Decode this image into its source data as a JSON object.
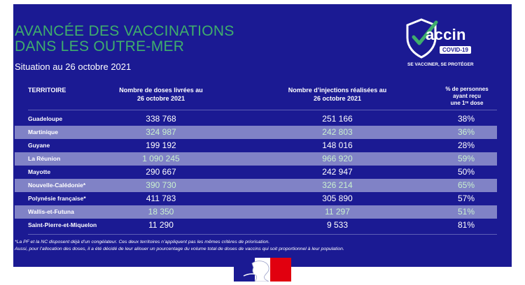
{
  "header": {
    "title_line1": "AVANCÉE DES VACCINATIONS",
    "title_line2": "DANS LES OUTRE-MER",
    "subtitle": "Situation au 26 octobre 2021"
  },
  "logo": {
    "word": "accin",
    "badge": "COVID-19",
    "tagline": "SE VACCINER, SE PROTÉGER",
    "icon": "shield-check-icon"
  },
  "table": {
    "headers": {
      "territory": "TERRITOIRE",
      "doses_1": "Nombre de doses livrées au",
      "doses_2": "26 octobre 2021",
      "injections_1": "Nombre d’injections réalisées au",
      "injections_2": "26 octobre 2021",
      "percent_1": "% de personnes",
      "percent_2": "ayant reçu",
      "percent_3": "une 1ʳᵉ dose"
    },
    "rows": [
      {
        "territory": "Guadeloupe",
        "doses": "338 768",
        "injections": "251 166",
        "percent": "38%"
      },
      {
        "territory": "Martinique",
        "doses": "324 987",
        "injections": "242 803",
        "percent": "36%"
      },
      {
        "territory": "Guyane",
        "doses": "199 192",
        "injections": "148 016",
        "percent": "28%"
      },
      {
        "territory": "La Réunion",
        "doses": "1 090 245",
        "injections": "966 920",
        "percent": "59%"
      },
      {
        "territory": "Mayotte",
        "doses": "290 667",
        "injections": "242 947",
        "percent": "50%"
      },
      {
        "territory": "Nouvelle-Calédonie*",
        "doses": "390 730",
        "injections": "326 214",
        "percent": "65%"
      },
      {
        "territory": "Polynésie française*",
        "doses": "411 783",
        "injections": "305 890",
        "percent": "57%"
      },
      {
        "territory": "Wallis-et-Futuna",
        "doses": "18 350",
        "injections": "11 297",
        "percent": "51%"
      },
      {
        "territory": "Saint-Pierre-et-Miquelon",
        "doses": "11 290",
        "injections": "9 533",
        "percent": "81%"
      }
    ]
  },
  "notes": {
    "line1": "*La PF et la NC disposent déjà d’un congélateur. Ces deux territoires n’appliquent pas les mêmes critères de priorisation.",
    "line2": "Aussi, pour l’allocation des doses, il a été décidé de leur allouer un pourcentage du volume total de doses de vaccins qui soit proportionnel à leur population."
  },
  "footer": {
    "emblem": "marianne-logo-icon"
  },
  "colors": {
    "background": "#1b1a93",
    "accent_green": "#3fae6c",
    "alt_row": "#8082c6",
    "alt_row_text": "#c9f1cf"
  }
}
